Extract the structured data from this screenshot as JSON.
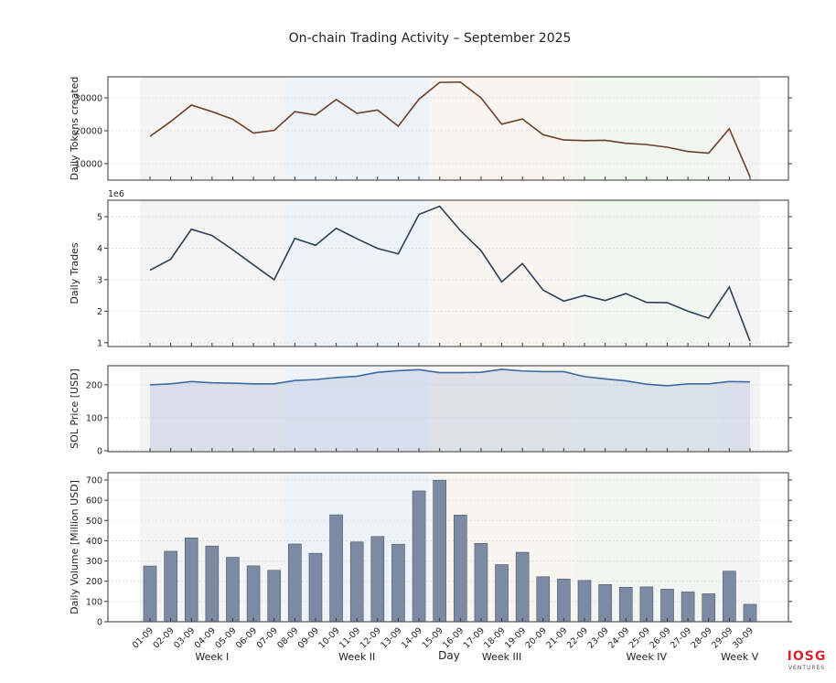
{
  "chart_data": [
    {
      "type": "line",
      "title": "On-chain Trading Activity – September 2025",
      "ylabel": "Daily Tokens created",
      "ylim": [
        5000,
        36400
      ],
      "yticks": [
        10000,
        20000,
        30000
      ],
      "grid": true,
      "color": "#6b3f2a",
      "values": [
        18300,
        22800,
        27800,
        25800,
        23500,
        19300,
        20100,
        25800,
        24800,
        29500,
        25300,
        26300,
        21400,
        29600,
        34700,
        34800,
        30000,
        22000,
        23600,
        18800,
        17200,
        17000,
        17100,
        16200,
        15800,
        15000,
        13700,
        13200,
        20600,
        6000
      ]
    },
    {
      "type": "line",
      "ylabel": "Daily Trades",
      "scale_label": "1e6",
      "ylim": [
        0.88,
        5.52
      ],
      "yticks": [
        1,
        2,
        3,
        4,
        5
      ],
      "grid": true,
      "color": "#2b3f55",
      "values": [
        3.3,
        3.65,
        4.6,
        4.4,
        3.95,
        3.47,
        3.0,
        4.31,
        4.09,
        4.63,
        4.3,
        3.99,
        3.82,
        5.07,
        5.33,
        4.56,
        3.92,
        2.93,
        3.51,
        2.67,
        2.32,
        2.5,
        2.34,
        2.56,
        2.28,
        2.27,
        2.0,
        1.78,
        2.77,
        1.05
      ]
    },
    {
      "type": "area",
      "ylabel": "SOL Price [USD]",
      "ylim": [
        -3,
        258
      ],
      "yticks": [
        0,
        100,
        200
      ],
      "grid": true,
      "color": "#3d6aa3",
      "values": [
        200,
        203,
        210,
        206,
        205,
        203,
        203,
        213,
        216,
        222,
        226,
        238,
        243,
        246,
        237,
        237,
        238,
        247,
        242,
        240,
        240,
        225,
        218,
        212,
        202,
        197,
        203,
        203,
        210,
        209
      ]
    },
    {
      "type": "bar",
      "ylabel": "Daily Volume [Million USD]",
      "xlabel": "Day",
      "ylim": [
        0,
        736
      ],
      "yticks": [
        0,
        100,
        200,
        300,
        400,
        500,
        600,
        700
      ],
      "grid": true,
      "color": "#7d8aa4",
      "values": [
        275,
        348,
        414,
        374,
        318,
        276,
        254,
        384,
        338,
        528,
        394,
        421,
        383,
        646,
        699,
        527,
        387,
        282,
        343,
        222,
        211,
        204,
        184,
        170,
        172,
        161,
        147,
        138,
        250,
        86
      ]
    }
  ],
  "categories": [
    "01-09",
    "02-09",
    "03-09",
    "04-09",
    "05-09",
    "06-09",
    "07-09",
    "08-09",
    "09-09",
    "10-09",
    "11-09",
    "12-09",
    "13-09",
    "14-09",
    "15-09",
    "16-09",
    "17-09",
    "18-09",
    "19-09",
    "20-09",
    "21-09",
    "22-09",
    "23-09",
    "24-09",
    "25-09",
    "26-09",
    "27-09",
    "28-09",
    "29-09",
    "30-09"
  ],
  "weeks": [
    {
      "label": "Week I",
      "start": 1,
      "end": 7,
      "color": "#f4f4f4"
    },
    {
      "label": "Week II",
      "start": 8,
      "end": 14,
      "color": "#eef3f9"
    },
    {
      "label": "Week III",
      "start": 15,
      "end": 21,
      "color": "#f8f4ef"
    },
    {
      "label": "Week IV",
      "start": 22,
      "end": 28,
      "color": "#f1f6f1"
    },
    {
      "label": "Week V",
      "start": 29,
      "end": 30,
      "color": "#f4f4f4"
    }
  ],
  "logo": {
    "text": "IOSG",
    "subtext": "VENTURES",
    "color": "#d8262f"
  }
}
